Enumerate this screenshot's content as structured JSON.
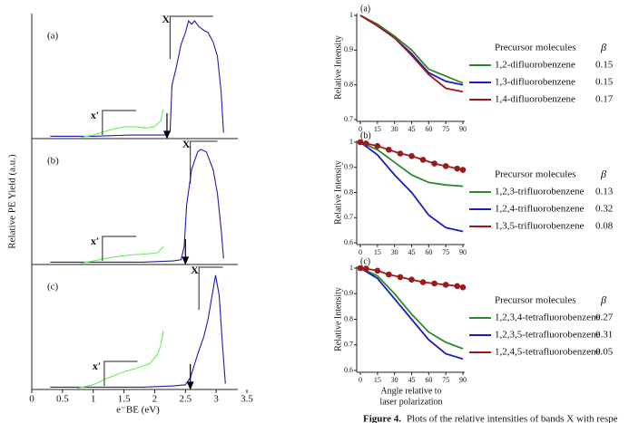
{
  "chart_data": [
    {
      "type": "spectrum",
      "label": "(a)",
      "band_label": "X",
      "band2_label": "x′",
      "X_band": [
        2.25,
        2.95
      ],
      "x_prime_band": [
        1.15,
        1.7
      ],
      "arrow_x": 2.2,
      "xlim": [
        0,
        3.5
      ],
      "ylim": [
        0,
        1
      ],
      "series": [
        {
          "color": "#1c1cb0",
          "x": [
            0.3,
            1.0,
            1.6,
            2.0,
            2.2,
            2.25,
            2.28,
            2.35,
            2.43,
            2.5,
            2.55,
            2.6,
            2.65,
            2.72,
            2.8,
            2.87,
            2.95,
            3.02,
            3.08,
            3.12
          ],
          "values": [
            0.02,
            0.02,
            0.03,
            0.03,
            0.03,
            0.06,
            0.45,
            0.6,
            0.8,
            0.9,
            1.0,
            0.97,
            1.0,
            0.95,
            0.92,
            0.9,
            0.82,
            0.7,
            0.4,
            0.05
          ]
        },
        {
          "color": "#66ee55",
          "x": [
            0.8,
            1.0,
            1.25,
            1.5,
            1.7,
            1.85,
            1.99,
            2.1,
            2.14
          ],
          "values": [
            0.01,
            0.03,
            0.07,
            0.1,
            0.1,
            0.09,
            0.1,
            0.15,
            0.25
          ]
        }
      ]
    },
    {
      "type": "spectrum",
      "label": "(b)",
      "band_label": "X",
      "band2_label": "x′",
      "X_band": [
        2.58,
        3.02
      ],
      "x_prime_band": [
        1.15,
        1.7
      ],
      "arrow_x": 2.5,
      "xlim": [
        0,
        3.5
      ],
      "ylim": [
        0,
        1
      ],
      "ylabel": "Relative PE Yield (a.u.)",
      "series": [
        {
          "color": "#1c1cb0",
          "x": [
            0.3,
            1.0,
            1.8,
            2.3,
            2.43,
            2.48,
            2.52,
            2.6,
            2.7,
            2.75,
            2.84,
            2.95,
            3.02,
            3.08,
            3.12
          ],
          "values": [
            0.02,
            0.02,
            0.02,
            0.03,
            0.04,
            0.15,
            0.5,
            0.8,
            0.95,
            0.97,
            0.95,
            0.8,
            0.6,
            0.3,
            0.05
          ]
        },
        {
          "color": "#66ee55",
          "x": [
            0.8,
            1.0,
            1.3,
            1.6,
            1.9,
            2.05,
            2.14
          ],
          "values": [
            0.01,
            0.03,
            0.06,
            0.08,
            0.09,
            0.1,
            0.15
          ]
        }
      ]
    },
    {
      "type": "spectrum",
      "label": "(c)",
      "band_label": "X",
      "band2_label": "x′",
      "X_band": [
        2.72,
        3.11
      ],
      "x_prime_band": [
        1.18,
        1.72
      ],
      "arrow_x": 2.58,
      "xlim": [
        0,
        3.5
      ],
      "ylim": [
        0,
        1
      ],
      "xlabel": "e⁻BE (eV)",
      "xticks": [
        0,
        0.5,
        1,
        1.5,
        2,
        2.5,
        3,
        3.5
      ],
      "series": [
        {
          "color": "#1c1cb0",
          "x": [
            0.3,
            1.0,
            1.8,
            2.3,
            2.5,
            2.58,
            2.7,
            2.8,
            2.87,
            2.95,
            2.99,
            3.05,
            3.1,
            3.15
          ],
          "values": [
            0.02,
            0.02,
            0.02,
            0.03,
            0.04,
            0.1,
            0.3,
            0.45,
            0.6,
            0.85,
            0.97,
            0.8,
            0.4,
            0.05
          ]
        },
        {
          "color": "#66ee55",
          "x": [
            0.74,
            1.0,
            1.25,
            1.5,
            1.7,
            1.92,
            2.05,
            2.1,
            2.14
          ],
          "values": [
            0.01,
            0.04,
            0.1,
            0.15,
            0.18,
            0.22,
            0.3,
            0.38,
            0.5
          ]
        }
      ]
    },
    {
      "type": "line",
      "label": "(a)",
      "ylabel": "Relative Intensity",
      "legend_title": "Precursor molecules",
      "legend_value_title": "β",
      "xlim": [
        0,
        90
      ],
      "xticks": [
        0,
        15,
        30,
        45,
        60,
        75,
        90
      ],
      "ylim": [
        0.7,
        1
      ],
      "yticks": [
        0.7,
        0.8,
        0.9,
        1
      ],
      "series": [
        {
          "name": "1,2-difluorobenzene",
          "beta": 0.15,
          "color": "#2a8a2a",
          "x": [
            0,
            15,
            30,
            45,
            60,
            75,
            90
          ],
          "values": [
            1.0,
            0.975,
            0.94,
            0.9,
            0.845,
            0.825,
            0.805
          ]
        },
        {
          "name": "1,3-difluorobenzene",
          "beta": 0.15,
          "color": "#1c1cc0",
          "x": [
            0,
            15,
            30,
            45,
            60,
            75,
            90
          ],
          "values": [
            1.0,
            0.97,
            0.935,
            0.89,
            0.835,
            0.81,
            0.8
          ]
        },
        {
          "name": "1,4-difluorobenzene",
          "beta": 0.17,
          "color": "#a01818",
          "x": [
            0,
            15,
            30,
            45,
            60,
            75,
            90
          ],
          "values": [
            1.0,
            0.97,
            0.935,
            0.885,
            0.83,
            0.79,
            0.78
          ]
        }
      ]
    },
    {
      "type": "line",
      "label": "(b)",
      "ylabel": "Relative Intensity",
      "legend_title": "Precursor molecules",
      "legend_value_title": "β",
      "xlim": [
        0,
        90
      ],
      "xticks": [
        0,
        15,
        30,
        45,
        60,
        75,
        90
      ],
      "ylim": [
        0.6,
        1
      ],
      "yticks": [
        0.6,
        0.7,
        0.8,
        0.9,
        1
      ],
      "series": [
        {
          "name": "1,2,3-trifluorobenzene",
          "beta": 0.13,
          "color": "#2a8a2a",
          "x": [
            0,
            15,
            30,
            45,
            60,
            75,
            90
          ],
          "values": [
            1.0,
            0.97,
            0.92,
            0.87,
            0.84,
            0.83,
            0.825
          ]
        },
        {
          "name": "1,2,4-trifluorobenzene",
          "beta": 0.32,
          "color": "#1c1cc0",
          "x": [
            0,
            15,
            30,
            45,
            60,
            75,
            90
          ],
          "values": [
            1.0,
            0.95,
            0.87,
            0.8,
            0.71,
            0.66,
            0.645
          ]
        },
        {
          "name": "1,3,5-trifluorobenzene",
          "beta": 0.08,
          "color": "#a01818",
          "markers": true,
          "x": [
            0,
            5,
            15,
            25,
            35,
            45,
            55,
            65,
            75,
            85,
            90
          ],
          "values": [
            1.0,
            0.995,
            0.985,
            0.97,
            0.955,
            0.945,
            0.93,
            0.915,
            0.905,
            0.895,
            0.89
          ]
        }
      ]
    },
    {
      "type": "line",
      "label": "(c)",
      "ylabel": "Relative Intensity",
      "legend_title": "Precursor molecules",
      "legend_value_title": "β",
      "xlim": [
        0,
        90
      ],
      "xticks": [
        0,
        15,
        30,
        45,
        60,
        75,
        90
      ],
      "ylim": [
        0.6,
        1
      ],
      "yticks": [
        0.6,
        0.7,
        0.8,
        0.9,
        1
      ],
      "xlabel": [
        "Angle relative to",
        "laser polarization"
      ],
      "series": [
        {
          "name": "1,2,3,4-tetrafluorobenzene",
          "beta": 0.27,
          "color": "#2a8a2a",
          "x": [
            0,
            15,
            30,
            45,
            60,
            75,
            90
          ],
          "values": [
            1.0,
            0.97,
            0.9,
            0.82,
            0.75,
            0.71,
            0.685
          ]
        },
        {
          "name": "1,2,3,5-tetrafluorobenzene",
          "beta": 0.31,
          "color": "#1c1cc0",
          "x": [
            0,
            15,
            30,
            45,
            60,
            75,
            90
          ],
          "values": [
            1.0,
            0.96,
            0.88,
            0.8,
            0.72,
            0.665,
            0.645
          ]
        },
        {
          "name": "1,2,4,5-tetrafluorobenzene",
          "beta": 0.05,
          "color": "#a01818",
          "markers": true,
          "x": [
            0,
            5,
            15,
            25,
            35,
            45,
            55,
            65,
            75,
            85,
            90
          ],
          "values": [
            1.0,
            0.998,
            0.99,
            0.975,
            0.965,
            0.955,
            0.945,
            0.94,
            0.935,
            0.93,
            0.925
          ]
        }
      ]
    }
  ],
  "caption_label": "Figure 4.",
  "caption_text": "Plots of the relative intensities of bands X with respe"
}
